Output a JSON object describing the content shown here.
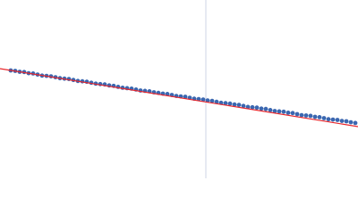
{
  "chart_data": {
    "type": "scatter",
    "xlim": [
      0,
      400
    ],
    "ylim": [
      0,
      200
    ],
    "series": [
      {
        "color": "#3b67b0",
        "x": [
          12,
          17,
          22,
          27,
          32,
          37,
          42,
          47,
          52,
          57,
          62,
          67,
          72,
          77,
          82,
          87,
          92,
          97,
          102,
          107,
          112,
          117,
          122,
          127,
          132,
          137,
          142,
          147,
          152,
          157,
          162,
          167,
          172,
          177,
          182,
          187,
          192,
          197,
          202,
          207,
          212,
          217,
          222,
          227,
          232,
          237,
          242,
          247,
          252,
          257,
          262,
          267,
          272,
          277,
          282,
          287,
          292,
          297,
          302,
          307,
          312,
          317,
          322,
          327,
          332,
          337,
          342,
          347,
          352,
          357,
          362,
          367,
          372,
          377,
          382,
          387,
          392,
          397
        ],
        "values": [
          121,
          120.5,
          119.5,
          119.2,
          117.9,
          117.6,
          116.4,
          115.2,
          114.9,
          114.4,
          113.4,
          112.3,
          111.8,
          111.4,
          110.3,
          109.2,
          108.8,
          108.3,
          107.2,
          106.2,
          105.7,
          105.3,
          104.2,
          103.7,
          102.6,
          101.6,
          101.1,
          100.6,
          99.6,
          98.5,
          98.1,
          97.6,
          96.5,
          95.8,
          95,
          94.6,
          93.5,
          92.4,
          91.9,
          91.5,
          90.4,
          89.3,
          88.9,
          88.4,
          87.3,
          86.9,
          85.8,
          84.7,
          84.3,
          83.8,
          82.8,
          82.4,
          81.2,
          80.1,
          79.7,
          79.3,
          78.2,
          77.8,
          76.6,
          75.5,
          75.1,
          74.7,
          73.6,
          73.2,
          72,
          70.9,
          70.5,
          70.1,
          69,
          68.6,
          67.5,
          66.3,
          65.9,
          65.5,
          64.4,
          64,
          62.9,
          62.1
        ]
      }
    ],
    "fit_line": {
      "color": "#e8262b",
      "x": [
        0,
        400
      ],
      "values": [
        123,
        58
      ]
    },
    "vline": {
      "color": "#cfd6e6",
      "x": 230
    }
  }
}
